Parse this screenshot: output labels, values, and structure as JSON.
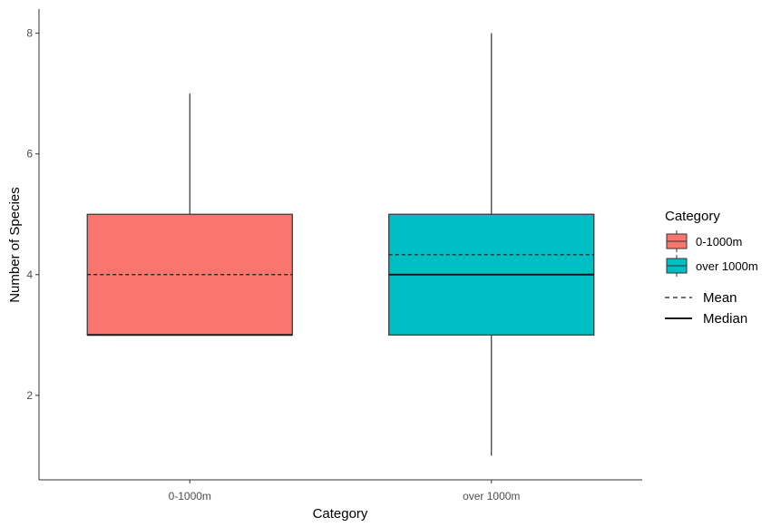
{
  "chart_data": {
    "type": "box",
    "xlabel": "Category",
    "ylabel": "Number of Species",
    "ylim": [
      0.6,
      8.4
    ],
    "yticks": [
      2,
      4,
      6,
      8
    ],
    "grid": false,
    "legend_position": "right",
    "categories": [
      "0-1000m",
      "over 1000m"
    ],
    "boxes": [
      {
        "category": "0-1000m",
        "min": 3,
        "q1": 3,
        "median": 3,
        "q3": 5,
        "max": 7,
        "mean": 4,
        "color": "#F8766D"
      },
      {
        "category": "over 1000m",
        "min": 1,
        "q1": 3,
        "median": 4,
        "q3": 5,
        "max": 8,
        "mean": 4.33,
        "color": "#00BFC4"
      }
    ],
    "legend": {
      "title": "Category",
      "fill_entries": [
        {
          "label": "0-1000m",
          "color": "#F8766D"
        },
        {
          "label": "over 1000m",
          "color": "#00BFC4"
        }
      ],
      "line_entries": [
        {
          "label": "Mean",
          "style": "dashed"
        },
        {
          "label": "Median",
          "style": "solid"
        }
      ]
    }
  }
}
